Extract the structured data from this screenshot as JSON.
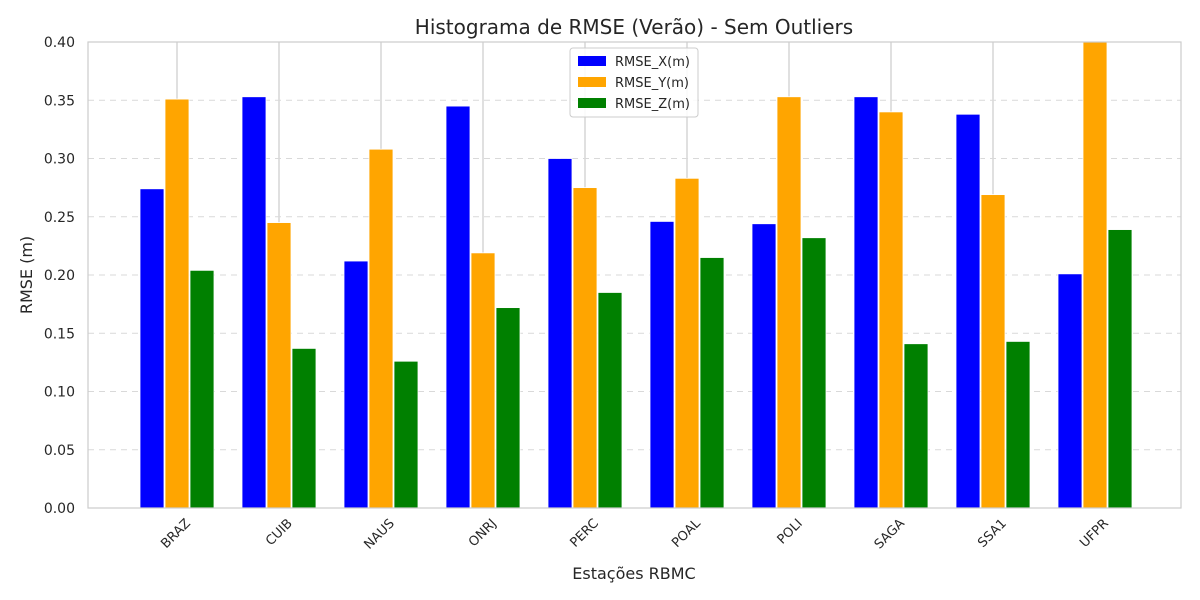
{
  "chart_data": {
    "type": "bar",
    "title": "Histograma de RMSE (Verão) - Sem Outliers",
    "xlabel": "Estações RBMC",
    "ylabel": "RMSE (m)",
    "ylim": [
      0,
      0.4
    ],
    "yticks": [
      "0.00",
      "0.05",
      "0.10",
      "0.15",
      "0.20",
      "0.25",
      "0.30",
      "0.35",
      "0.40"
    ],
    "categories": [
      "BRAZ",
      "CUIB",
      "NAUS",
      "ONRJ",
      "PERC",
      "POAL",
      "POLI",
      "SAGA",
      "SSA1",
      "UFPR"
    ],
    "series": [
      {
        "name": "RMSE_X(m)",
        "color": "#0000ff",
        "values": [
          0.274,
          0.353,
          0.212,
          0.345,
          0.3,
          0.246,
          0.244,
          0.353,
          0.338,
          0.201
        ]
      },
      {
        "name": "RMSE_Y(m)",
        "color": "#ffa500",
        "values": [
          0.351,
          0.245,
          0.308,
          0.219,
          0.275,
          0.283,
          0.353,
          0.34,
          0.269,
          0.4
        ]
      },
      {
        "name": "RMSE_Z(m)",
        "color": "#008000",
        "values": [
          0.204,
          0.137,
          0.126,
          0.172,
          0.185,
          0.215,
          0.232,
          0.141,
          0.143,
          0.239
        ]
      }
    ],
    "grid": {
      "y": "dashed",
      "x": "solid"
    },
    "legend": "top-center"
  }
}
